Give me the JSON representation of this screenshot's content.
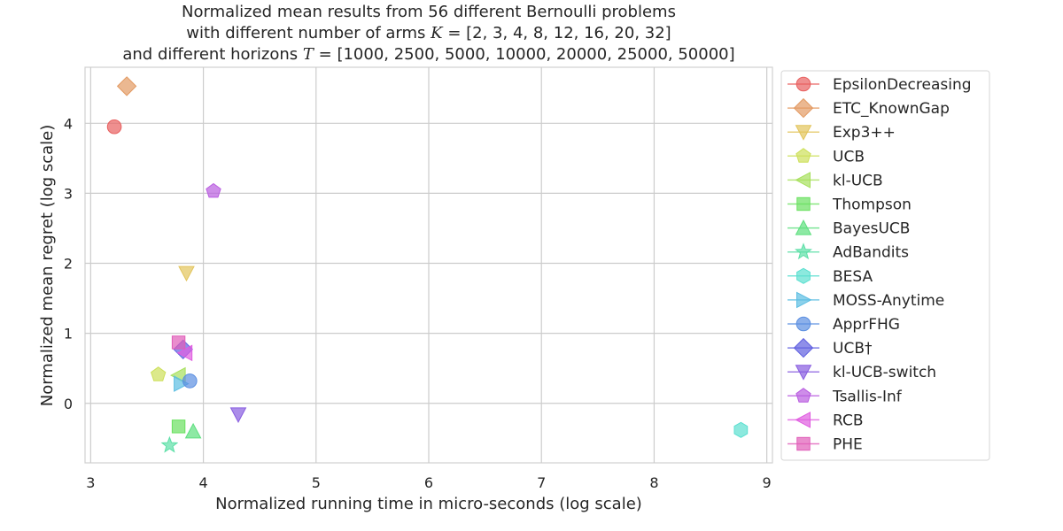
{
  "chart_data": {
    "type": "scatter",
    "title_parts": {
      "line1": "Normalized mean results from 56 different Bernoulli problems",
      "line2_prefix": "with different number of arms ",
      "line2_var": "K",
      "line2_suffix": " = [2, 3, 4, 8, 12, 16, 20, 32]",
      "line3_prefix": "and different horizons ",
      "line3_var": "T",
      "line3_suffix": " = [1000, 2500, 5000, 10000, 20000, 25000, 50000]"
    },
    "xlabel": "Normalized running time in micro-seconds (log scale)",
    "ylabel": "Normalized mean regret (log scale)",
    "xlim": [
      2.95,
      9.05
    ],
    "ylim": [
      -0.85,
      4.8
    ],
    "xticks": [
      3,
      4,
      5,
      6,
      7,
      8,
      9
    ],
    "yticks": [
      0,
      1,
      2,
      3,
      4
    ],
    "grid": true,
    "legend_position": "outside-right",
    "series": [
      {
        "name": "EpsilonDecreasing",
        "marker": "circle",
        "color": "#e8605f",
        "x": 3.21,
        "y": 3.95
      },
      {
        "name": "ETC_KnownGap",
        "marker": "diamond",
        "color": "#e39a62",
        "x": 3.32,
        "y": 4.53
      },
      {
        "name": "Exp3++",
        "marker": "tri-down",
        "color": "#e2c45b",
        "x": 3.85,
        "y": 1.86
      },
      {
        "name": "UCB",
        "marker": "pentagon",
        "color": "#cde05a",
        "x": 3.6,
        "y": 0.41
      },
      {
        "name": "kl-UCB",
        "marker": "tri-left",
        "color": "#a7e05c",
        "x": 3.78,
        "y": 0.4
      },
      {
        "name": "Thompson",
        "marker": "square",
        "color": "#6ae05f",
        "x": 3.78,
        "y": -0.33
      },
      {
        "name": "BayesUCB",
        "marker": "tri-up",
        "color": "#5cdf7e",
        "x": 3.91,
        "y": -0.4
      },
      {
        "name": "AdBandits",
        "marker": "star",
        "color": "#5cdfa7",
        "x": 3.7,
        "y": -0.6
      },
      {
        "name": "BESA",
        "marker": "hexagon",
        "color": "#5bdfd0",
        "x": 8.77,
        "y": -0.38
      },
      {
        "name": "MOSS-Anytime",
        "marker": "tri-right",
        "color": "#5bbde2",
        "x": 3.8,
        "y": 0.28
      },
      {
        "name": "ApprFHG",
        "marker": "circle",
        "color": "#5b8fe1",
        "x": 3.88,
        "y": 0.32
      },
      {
        "name": "UCB†",
        "marker": "diamond",
        "color": "#5f5fe0",
        "x": 3.82,
        "y": 0.77
      },
      {
        "name": "kl-UCB-switch",
        "marker": "tri-down",
        "color": "#885de0",
        "x": 4.31,
        "y": -0.16
      },
      {
        "name": "Tsallis-Inf",
        "marker": "pentagon",
        "color": "#b95ce0",
        "x": 4.09,
        "y": 3.03
      },
      {
        "name": "RCB",
        "marker": "tri-left",
        "color": "#e05ce0",
        "x": 3.84,
        "y": 0.72
      },
      {
        "name": "PHE",
        "marker": "square",
        "color": "#e05cb8",
        "x": 3.78,
        "y": 0.87
      }
    ]
  }
}
